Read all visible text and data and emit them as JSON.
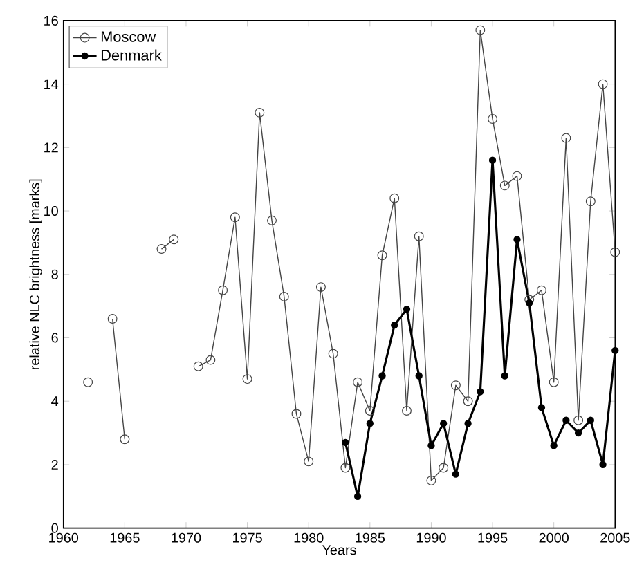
{
  "chart_data": {
    "type": "line",
    "xlabel": "Years",
    "ylabel": "relative NLC brightness [marks]",
    "xlim": [
      1960,
      2005
    ],
    "ylim": [
      0,
      16
    ],
    "xticks": [
      1960,
      1965,
      1970,
      1975,
      1980,
      1985,
      1990,
      1995,
      2000,
      2005
    ],
    "yticks": [
      0,
      2,
      4,
      6,
      8,
      10,
      12,
      14,
      16
    ],
    "marker": "circle",
    "legend": "top left",
    "grid": false,
    "series": [
      {
        "name": "Moscow",
        "color": "#444444",
        "x": [
          1962,
          1963,
          1964,
          1965,
          1966,
          1967,
          1968,
          1969,
          1970,
          1971,
          1972,
          1973,
          1974,
          1975,
          1976,
          1977,
          1978,
          1979,
          1980,
          1981,
          1982,
          1983,
          1984,
          1985,
          1986,
          1987,
          1988,
          1989,
          1990,
          1991,
          1992,
          1993,
          1994,
          1995,
          1996,
          1997,
          1998,
          1999,
          2000,
          2001,
          2002,
          2003,
          2004,
          2005
        ],
        "values": [
          4.6,
          null,
          6.6,
          2.8,
          null,
          null,
          8.8,
          9.1,
          null,
          5.1,
          5.3,
          7.5,
          9.8,
          4.7,
          13.1,
          9.7,
          7.3,
          3.6,
          2.1,
          7.6,
          5.5,
          1.9,
          4.6,
          3.7,
          8.6,
          10.4,
          3.7,
          9.2,
          1.5,
          1.9,
          4.5,
          4.0,
          15.7,
          12.9,
          10.8,
          11.1,
          7.2,
          7.5,
          4.6,
          12.3,
          3.4,
          10.3,
          14.0,
          8.7
        ]
      },
      {
        "name": "Denmark",
        "color": "#000000",
        "x": [
          1983,
          1984,
          1985,
          1986,
          1987,
          1988,
          1989,
          1990,
          1991,
          1992,
          1993,
          1994,
          1995,
          1996,
          1997,
          1998,
          1999,
          2000,
          2001,
          2002,
          2003,
          2004,
          2005
        ],
        "values": [
          2.7,
          1.0,
          3.3,
          4.8,
          6.4,
          6.9,
          4.8,
          2.6,
          3.3,
          1.7,
          3.3,
          4.3,
          11.6,
          4.8,
          9.1,
          7.1,
          3.8,
          2.6,
          3.4,
          3.0,
          3.4,
          2.0,
          5.6
        ]
      }
    ]
  }
}
